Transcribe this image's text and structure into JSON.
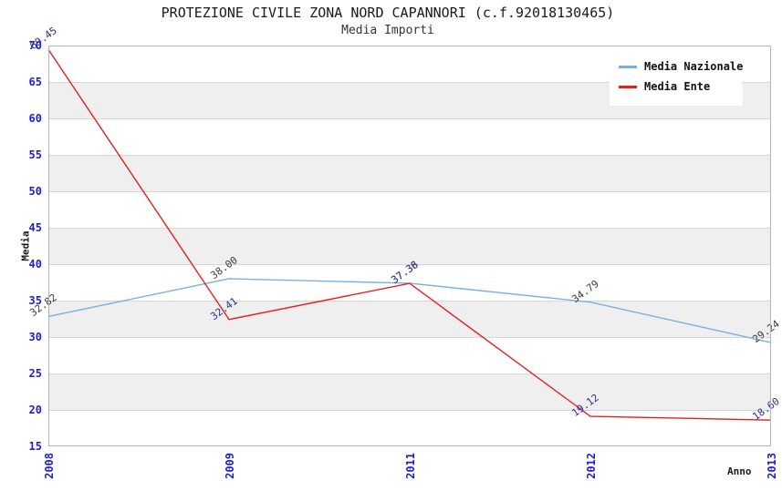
{
  "title": "PROTEZIONE CIVILE ZONA NORD CAPANNORI (c.f.92018130465)",
  "subtitle": "Media Importi",
  "chart_data": {
    "type": "line",
    "title": "PROTEZIONE CIVILE ZONA NORD CAPANNORI (c.f.92018130465)",
    "subtitle": "Media Importi",
    "categories": [
      "2008",
      "2009",
      "2011",
      "2012",
      "2013"
    ],
    "series": [
      {
        "name": "Media Nazionale",
        "color": "#7cb0dc",
        "values": [
          32.82,
          38.0,
          37.38,
          34.79,
          29.24
        ],
        "labels": [
          "32.82",
          "38.00",
          "37.38",
          "34.79",
          "29.24"
        ],
        "label_color": "#3a3a3a"
      },
      {
        "name": "Media Ente",
        "color": "#e32020",
        "values": [
          69.45,
          32.41,
          37.36,
          19.12,
          18.6
        ],
        "labels": [
          "69.45",
          "32.41",
          "37.36",
          "19.12",
          "18.60"
        ],
        "label_color": "#2e2e9a"
      }
    ],
    "xlabel": "Anno",
    "ylabel": "Media",
    "ylim": [
      15,
      70
    ],
    "ytick_step": 5,
    "grid": "horizontal-bands",
    "band_color": "#efefef",
    "gridline_color": "#d6d6d6",
    "tick_label_color": "#1f1fd0",
    "legend_position": "top-right",
    "legend_entries": [
      "Media Nazionale",
      "Media Ente"
    ]
  }
}
